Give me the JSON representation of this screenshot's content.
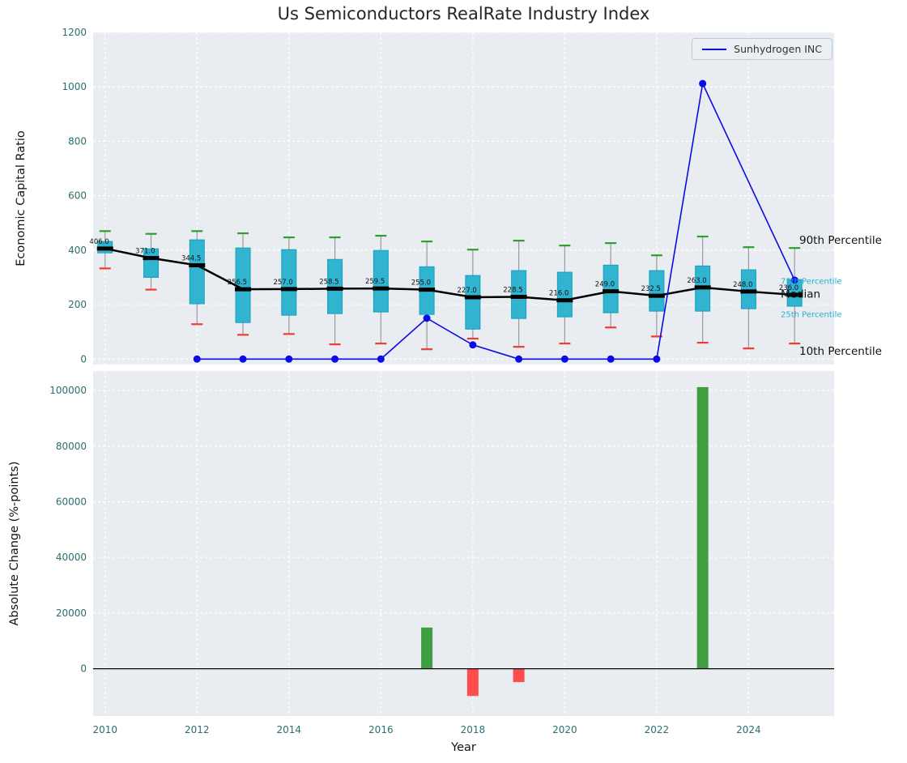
{
  "title": "Us Semiconductors RealRate Industry Index",
  "legend": {
    "series_label": "Sunhydrogen INC"
  },
  "colors": {
    "panel_bg": "#e9edf1",
    "grid": "#ffffff",
    "box_fill": "#30b4cf",
    "box_edge": "#17a0bd",
    "whisker": "#9a9a9a",
    "cap_90": "#2ca02c",
    "cap_10": "#f03b30",
    "median": "#000000",
    "company_line": "#0b0be6",
    "bar_positive": "#3f9e3f",
    "bar_negative": "#ff4d4d",
    "tick_label": "#2d6e6e",
    "annotation_cyan": "#29b0cf"
  },
  "chart_data": [
    {
      "type": "boxplot",
      "title": "Us Semiconductors RealRate Industry Index",
      "ylabel": "Economic Capital Ratio",
      "ylim": [
        -20,
        1200
      ],
      "yticks": [
        0,
        200,
        400,
        600,
        800,
        1000,
        1200
      ],
      "xticks": [
        2010,
        2012,
        2014,
        2016,
        2018,
        2020,
        2022,
        2024
      ],
      "xlim": [
        2009.74,
        2025.86
      ],
      "grid": true,
      "years": [
        2010,
        2011,
        2012,
        2013,
        2014,
        2015,
        2016,
        2017,
        2018,
        2019,
        2020,
        2021,
        2022,
        2023,
        2024,
        2025
      ],
      "p90": [
        470,
        460,
        470,
        462,
        447,
        447,
        453,
        432,
        402,
        435,
        417,
        426,
        381,
        450,
        411,
        408
      ],
      "q3": [
        432,
        405,
        438,
        408,
        402,
        366,
        399,
        339,
        307,
        325,
        319,
        345,
        325,
        342,
        328,
        292
      ],
      "median": [
        406,
        371,
        344.5,
        256.5,
        257,
        258.5,
        259.5,
        255,
        227,
        228.5,
        216,
        249,
        232.5,
        263,
        248,
        236
      ],
      "median_labels": [
        "406.0",
        "371.0",
        "344.5",
        "256.5",
        "257.0",
        "258.5",
        "259.5",
        "255.0",
        "227.0",
        "228.5",
        "216.0",
        "249.0",
        "232.5",
        "263.0",
        "248.0",
        "236.0"
      ],
      "q1": [
        390,
        300,
        203,
        134,
        161,
        167,
        173,
        164,
        110,
        149,
        155,
        170,
        176,
        176,
        185,
        194
      ],
      "p10": [
        333,
        255,
        128,
        89,
        92,
        54,
        57,
        36,
        75,
        45,
        57,
        116,
        83,
        60,
        39,
        57
      ],
      "series": [
        {
          "name": "Sunhydrogen INC",
          "values": [
            null,
            null,
            0,
            0,
            0,
            0,
            0,
            150,
            52,
            0,
            0,
            0,
            0,
            1012,
            null,
            290
          ]
        }
      ],
      "annotations": [
        {
          "text": "90th Percentile",
          "style": "large",
          "column": "far",
          "y": 435
        },
        {
          "text": "75th Percentile",
          "style": "small",
          "column": "near",
          "y": 288
        },
        {
          "text": "Median",
          "style": "large",
          "column": "near",
          "y": 237
        },
        {
          "text": "25th Percentile",
          "style": "small",
          "column": "near",
          "y": 166
        },
        {
          "text": "10th Percentile",
          "style": "large",
          "column": "far",
          "y": 28
        }
      ],
      "legend_position": "upper right"
    },
    {
      "type": "bar",
      "ylabel": "Absolute Change (%-points)",
      "xlabel": "Year",
      "ylim": [
        -17000,
        107000
      ],
      "yticks": [
        0,
        20000,
        40000,
        60000,
        80000,
        100000
      ],
      "grid": true,
      "years": [
        2010,
        2011,
        2012,
        2013,
        2014,
        2015,
        2016,
        2017,
        2018,
        2019,
        2020,
        2021,
        2022,
        2023,
        2024,
        2025
      ],
      "values": [
        0,
        0,
        0,
        0,
        0,
        0,
        0,
        14800,
        -9800,
        -4800,
        0,
        0,
        0,
        101200,
        0,
        0
      ]
    }
  ]
}
